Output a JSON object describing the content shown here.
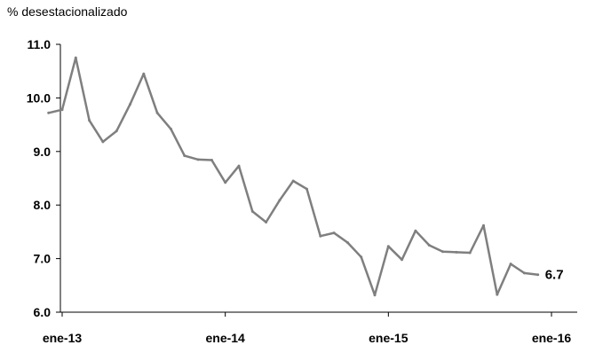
{
  "chart_data": {
    "type": "line",
    "unit_label": "% desestacionalizado",
    "ylim": [
      6.0,
      11.0
    ],
    "y_ticks": [
      "6.0",
      "7.0",
      "8.0",
      "9.0",
      "10.0",
      "11.0"
    ],
    "x_ticks": [
      "ene-13",
      "ene-14",
      "ene-15",
      "ene-16"
    ],
    "grid": false,
    "series": [
      {
        "color": "#7f7f7f",
        "x": [
          "2012-12",
          "2013-01",
          "2013-02",
          "2013-03",
          "2013-04",
          "2013-05",
          "2013-06",
          "2013-07",
          "2013-08",
          "2013-09",
          "2013-10",
          "2013-11",
          "2013-12",
          "2014-01",
          "2014-02",
          "2014-03",
          "2014-04",
          "2014-05",
          "2014-06",
          "2014-07",
          "2014-08",
          "2014-09",
          "2014-10",
          "2014-11",
          "2014-12",
          "2015-01",
          "2015-02",
          "2015-03",
          "2015-04",
          "2015-05",
          "2015-06",
          "2015-07",
          "2015-08",
          "2015-09",
          "2015-10",
          "2015-11",
          "2015-12"
        ],
        "values": [
          9.72,
          9.78,
          10.75,
          9.58,
          9.18,
          9.38,
          9.88,
          10.45,
          9.72,
          9.42,
          8.92,
          8.85,
          8.84,
          8.42,
          8.73,
          7.88,
          7.68,
          8.09,
          8.45,
          8.3,
          7.42,
          7.48,
          7.3,
          7.03,
          6.32,
          7.23,
          6.98,
          7.52,
          7.25,
          7.13,
          7.12,
          7.11,
          7.62,
          6.33,
          6.9,
          6.73,
          6.7
        ]
      }
    ],
    "end_label": "6.7"
  }
}
